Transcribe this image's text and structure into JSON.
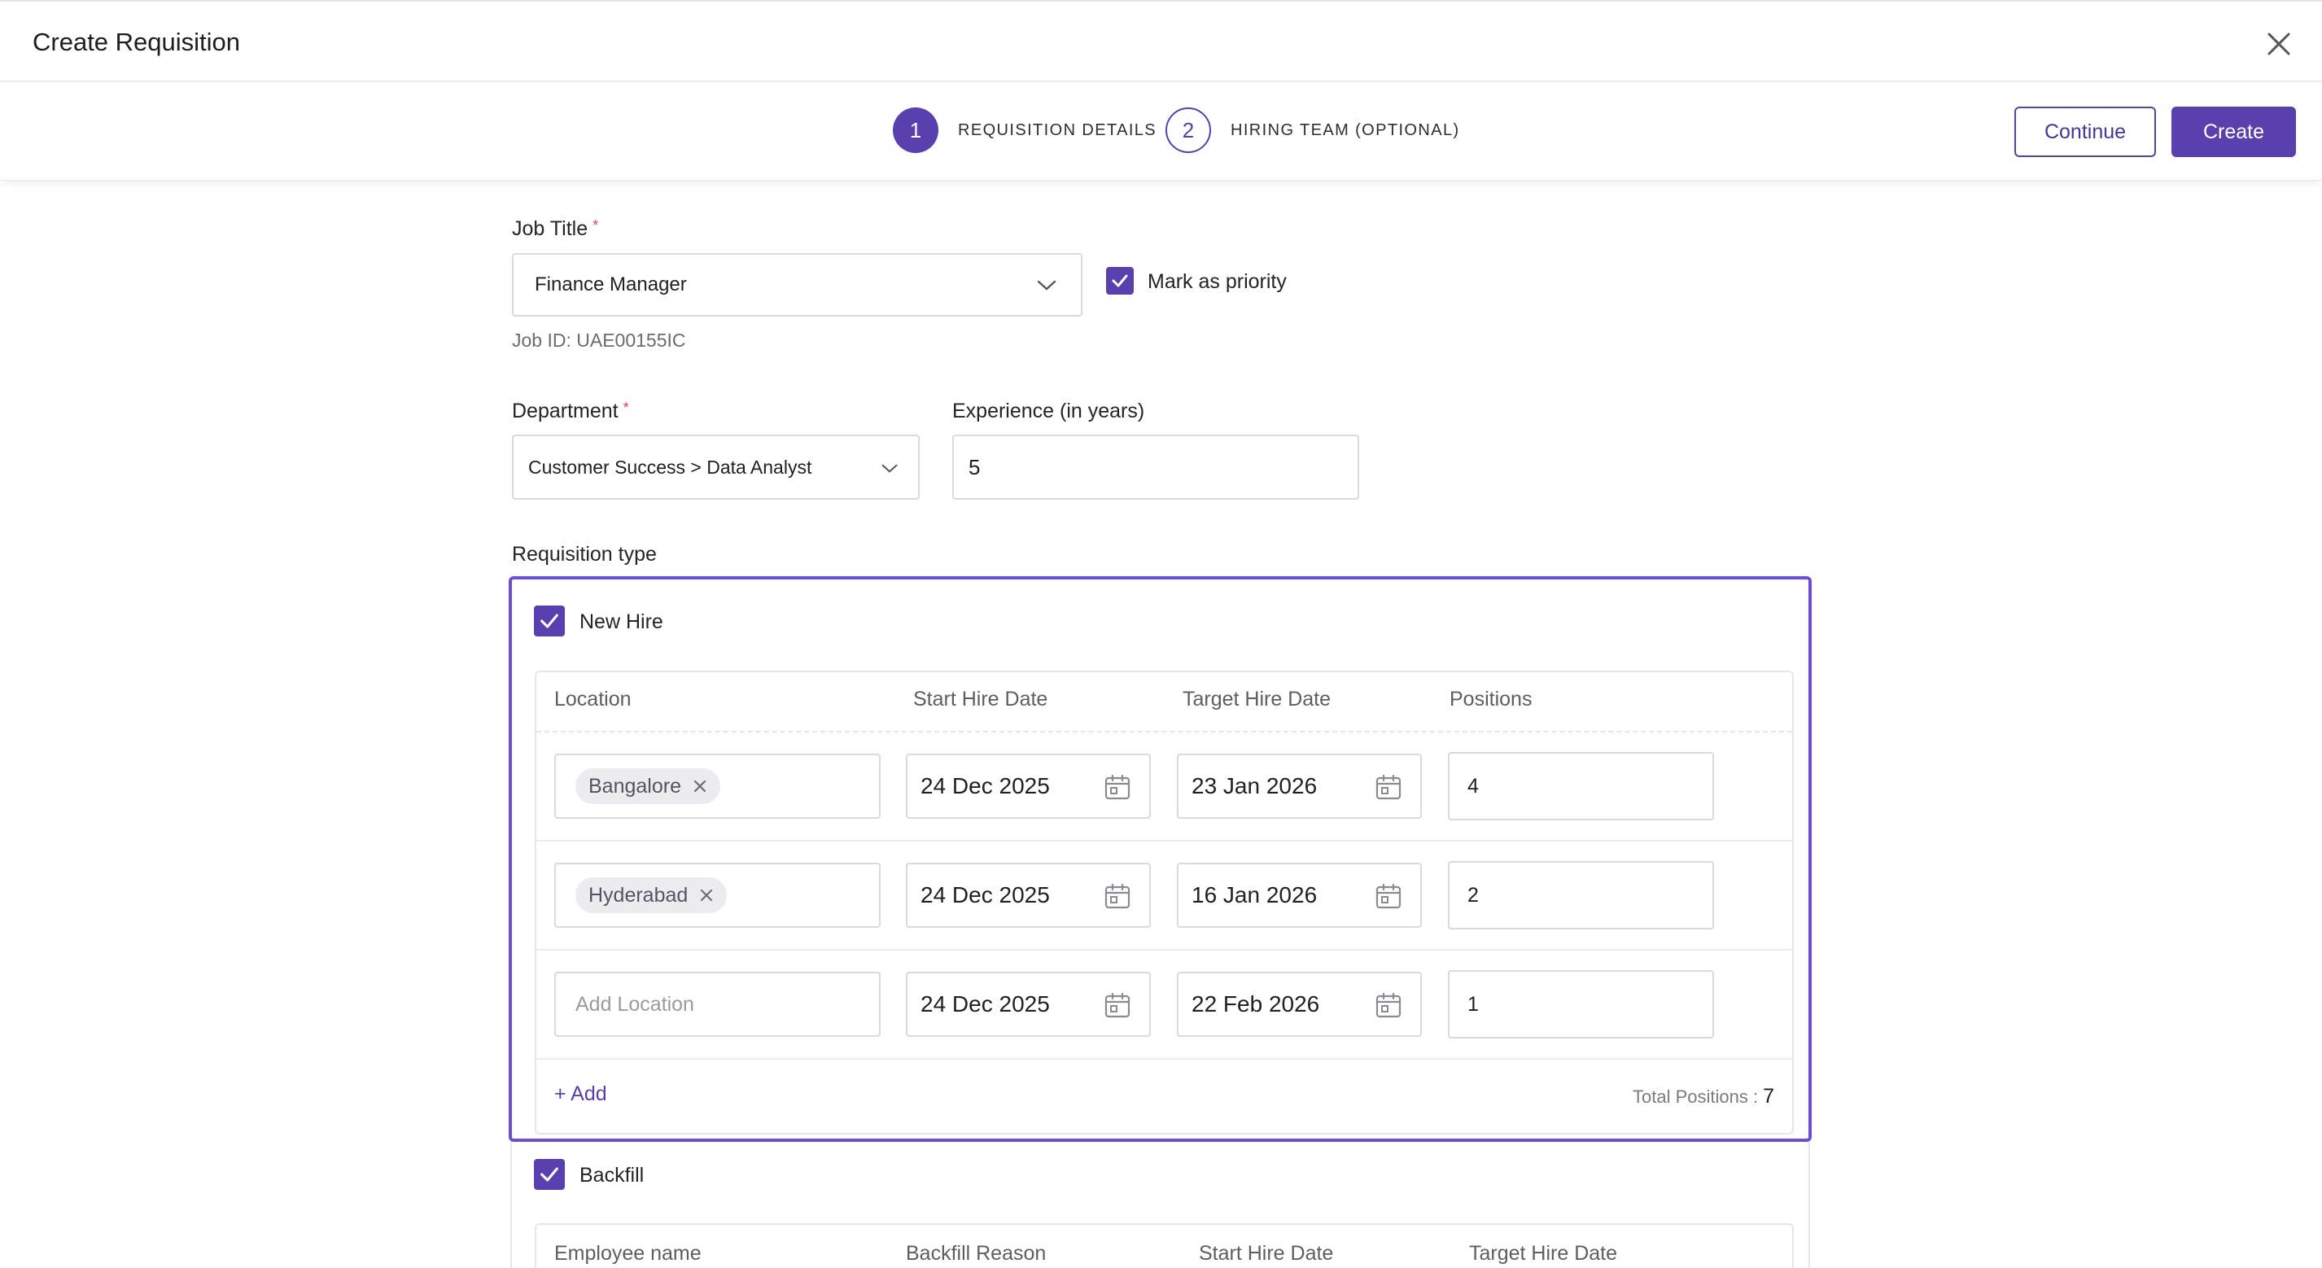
{
  "modal": {
    "title": "Create Requisition"
  },
  "stepper": {
    "steps": [
      {
        "number": "1",
        "label": "REQUISITION DETAILS"
      },
      {
        "number": "2",
        "label": "HIRING TEAM (OPTIONAL)"
      }
    ],
    "continue_label": "Continue",
    "create_label": "Create"
  },
  "form": {
    "job_title": {
      "label": "Job Title",
      "required": "*",
      "value": "Finance Manager"
    },
    "priority": {
      "label": "Mark as priority",
      "checked": true
    },
    "job_id": "Job ID: UAE00155IC",
    "department": {
      "label": "Department",
      "required": "*",
      "value": "Customer Success > Data Analyst"
    },
    "experience": {
      "label": "Experience (in years)",
      "value": "5"
    },
    "requisition_type_label": "Requisition type"
  },
  "new_hire": {
    "label": "New Hire",
    "checked": true,
    "columns": [
      "Location",
      "Start Hire Date",
      "Target Hire Date",
      "Positions"
    ],
    "rows": [
      {
        "location": "Bangalore",
        "start": "24 Dec 2025",
        "target": "23 Jan 2026",
        "positions": "4"
      },
      {
        "location": "Hyderabad",
        "start": "24 Dec 2025",
        "target": "16 Jan 2026",
        "positions": "2"
      },
      {
        "location": "",
        "location_placeholder": "Add Location",
        "start": "24 Dec 2025",
        "target": "22 Feb 2026",
        "positions": "1"
      }
    ],
    "add_label": "+ Add",
    "total_label": "Total Positions :",
    "total_value": "7"
  },
  "backfill": {
    "label": "Backfill",
    "checked": true,
    "columns": [
      "Employee name",
      "Backfill Reason",
      "Start Hire Date",
      "Target Hire Date"
    ]
  },
  "colors": {
    "accent": "#5a3fae",
    "focus_border": "#6a4fd6",
    "required": "#e0445a"
  },
  "icons": [
    "close-icon",
    "chevron-down-icon",
    "check-icon",
    "calendar-icon",
    "remove-chip-icon"
  ]
}
